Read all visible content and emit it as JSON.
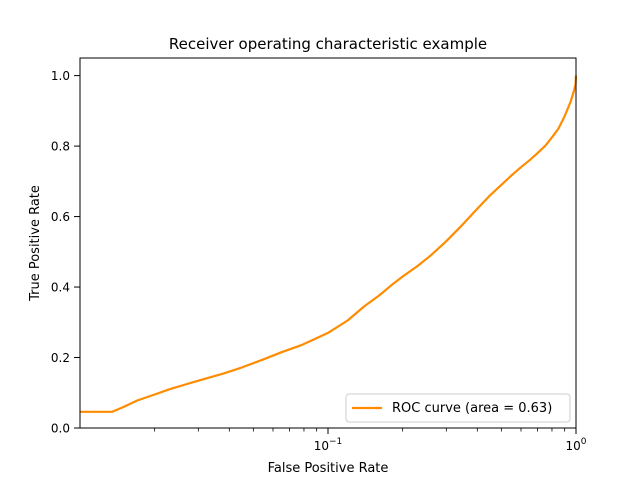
{
  "chart_data": {
    "type": "line",
    "title": "Receiver operating characteristic example",
    "xlabel": "False Positive Rate",
    "ylabel": "True Positive Rate",
    "xscale": "log",
    "xlim": [
      0.01,
      1.0
    ],
    "ylim": [
      0.0,
      1.05
    ],
    "x_major_ticks": [
      {
        "value": 0.1,
        "label": "10",
        "exp": "−1"
      },
      {
        "value": 1.0,
        "label": "10",
        "exp": "0"
      }
    ],
    "y_ticks": [
      {
        "value": 0.0,
        "label": "0.0"
      },
      {
        "value": 0.2,
        "label": "0.2"
      },
      {
        "value": 0.4,
        "label": "0.4"
      },
      {
        "value": 0.6,
        "label": "0.6"
      },
      {
        "value": 0.8,
        "label": "0.8"
      },
      {
        "value": 1.0,
        "label": "1.0"
      }
    ],
    "grid": false,
    "legend_position": "lower-right",
    "series": [
      {
        "name": "ROC curve (area = 0.63)",
        "color": "#ff8c00",
        "x": [
          0.01,
          0.0135,
          0.015,
          0.017,
          0.02,
          0.023,
          0.027,
          0.032,
          0.038,
          0.045,
          0.055,
          0.065,
          0.078,
          0.09,
          0.1,
          0.12,
          0.14,
          0.16,
          0.18,
          0.2,
          0.23,
          0.26,
          0.3,
          0.35,
          0.4,
          0.45,
          0.5,
          0.55,
          0.6,
          0.65,
          0.7,
          0.75,
          0.8,
          0.85,
          0.9,
          0.95,
          0.98,
          0.995,
          1.0
        ],
        "y": [
          0.046,
          0.046,
          0.06,
          0.078,
          0.095,
          0.11,
          0.125,
          0.14,
          0.155,
          0.172,
          0.195,
          0.215,
          0.235,
          0.255,
          0.27,
          0.305,
          0.345,
          0.375,
          0.405,
          0.43,
          0.46,
          0.49,
          0.53,
          0.578,
          0.622,
          0.66,
          0.69,
          0.717,
          0.74,
          0.76,
          0.78,
          0.8,
          0.825,
          0.85,
          0.885,
          0.925,
          0.955,
          0.975,
          1.0
        ]
      }
    ]
  }
}
